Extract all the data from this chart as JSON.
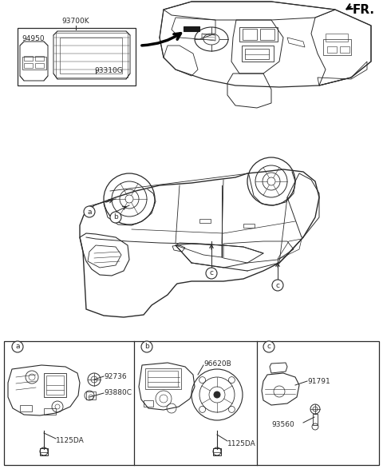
{
  "bg_color": "#ffffff",
  "line_color": "#2a2a2a",
  "fr_label": "FR.",
  "panel_labels": [
    "a",
    "b",
    "c"
  ],
  "part_numbers_a": [
    "92736",
    "93880C",
    "1125DA"
  ],
  "part_numbers_b": [
    "96620B",
    "1125DA"
  ],
  "part_numbers_c": [
    "91791",
    "93560"
  ],
  "inset_label_main": "93700K",
  "inset_label_bezel": "93310G",
  "inset_label_switch": "94950",
  "font_size_small": 6.5,
  "font_size_medium": 8,
  "font_size_large": 10,
  "font_size_fr": 11
}
